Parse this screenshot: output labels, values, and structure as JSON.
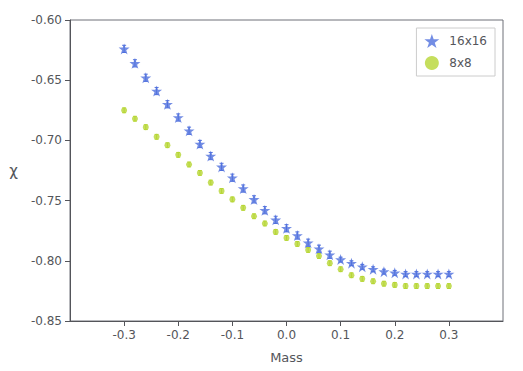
{
  "chart_data": {
    "type": "scatter",
    "title": "",
    "xlabel": "Mass",
    "ylabel": "χ",
    "xlim": [
      -0.4,
      0.4
    ],
    "ylim": [
      -0.85,
      -0.6
    ],
    "xticks": [
      -0.3,
      -0.2,
      -0.1,
      {
        "value": 0.0,
        "label": "0.0"
      },
      0.1,
      0.2,
      0.3
    ],
    "yticks": [
      -0.85,
      {
        "value": -0.8,
        "label": "-0.80"
      },
      -0.75,
      {
        "value": -0.7,
        "label": "-0.70"
      },
      -0.65,
      {
        "value": -0.6,
        "label": "-0.60"
      }
    ],
    "grid": false,
    "legend": "upper right",
    "series": [
      {
        "name": "16x16",
        "marker": "star",
        "x": [
          -0.3,
          -0.28,
          -0.26,
          -0.24,
          -0.22,
          -0.2,
          -0.18,
          -0.16,
          -0.14,
          -0.12,
          -0.1,
          -0.08,
          -0.06,
          -0.04,
          -0.02,
          0.0,
          0.02,
          0.04,
          0.06,
          0.08,
          0.1,
          0.12,
          0.14,
          0.16,
          0.18,
          0.2,
          0.22,
          0.24,
          0.26,
          0.28,
          0.3
        ],
        "values": [
          -0.624,
          -0.636,
          -0.648,
          -0.659,
          -0.67,
          -0.681,
          -0.692,
          -0.703,
          -0.713,
          -0.722,
          -0.731,
          -0.74,
          -0.749,
          -0.758,
          -0.766,
          -0.773,
          -0.779,
          -0.785,
          -0.79,
          -0.795,
          -0.799,
          -0.802,
          -0.805,
          -0.807,
          -0.809,
          -0.81,
          -0.811,
          -0.811,
          -0.811,
          -0.811,
          -0.811
        ],
        "yerr": [
          0.003,
          0.003,
          0.003,
          0.003,
          0.003,
          0.003,
          0.003,
          0.003,
          0.003,
          0.003,
          0.003,
          0.003,
          0.003,
          0.003,
          0.003,
          0.003,
          0.003,
          0.003,
          0.003,
          0.003,
          0.002,
          0.002,
          0.002,
          0.002,
          0.002,
          0.002,
          0.002,
          0.002,
          0.002,
          0.002,
          0.002
        ]
      },
      {
        "name": "8x8",
        "marker": "dot",
        "x": [
          -0.3,
          -0.28,
          -0.26,
          -0.24,
          -0.22,
          -0.2,
          -0.18,
          -0.16,
          -0.14,
          -0.12,
          -0.1,
          -0.08,
          -0.06,
          -0.04,
          -0.02,
          0.0,
          0.02,
          0.04,
          0.06,
          0.08,
          0.1,
          0.12,
          0.14,
          0.16,
          0.18,
          0.2,
          0.22,
          0.24,
          0.26,
          0.28,
          0.3
        ],
        "values": [
          -0.675,
          -0.682,
          -0.689,
          -0.697,
          -0.704,
          -0.712,
          -0.72,
          -0.727,
          -0.735,
          -0.742,
          -0.749,
          -0.756,
          -0.763,
          -0.769,
          -0.776,
          -0.781,
          -0.786,
          -0.791,
          -0.796,
          -0.802,
          -0.807,
          -0.812,
          -0.815,
          -0.817,
          -0.819,
          -0.82,
          -0.821,
          -0.821,
          -0.821,
          -0.821,
          -0.821
        ],
        "yerr": [
          0.002,
          0.002,
          0.002,
          0.002,
          0.002,
          0.002,
          0.002,
          0.002,
          0.002,
          0.002,
          0.002,
          0.002,
          0.002,
          0.002,
          0.002,
          0.002,
          0.002,
          0.002,
          0.002,
          0.002,
          0.002,
          0.002,
          0.002,
          0.002,
          0.002,
          0.002,
          0.002,
          0.002,
          0.002,
          0.002,
          0.002
        ]
      }
    ]
  }
}
